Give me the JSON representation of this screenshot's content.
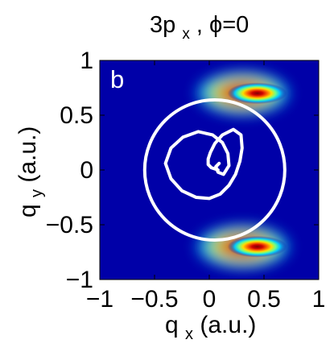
{
  "chart_data": {
    "type": "heatmap",
    "title": {
      "main": "3p",
      "sub": "x",
      "rest": ", ϕ=0"
    },
    "panel_label": "b",
    "xlabel": {
      "main": "q",
      "sub": "x",
      "rest": " (a.u.)"
    },
    "ylabel": {
      "main": "q",
      "sub": "y",
      "rest": " (a.u.)"
    },
    "xlim": [
      -1,
      1
    ],
    "ylim": [
      -1,
      1
    ],
    "x_ticks": [
      {
        "value": -1,
        "label": "−1"
      },
      {
        "value": -0.5,
        "label": "−0.5"
      },
      {
        "value": 0,
        "label": "0"
      },
      {
        "value": 0.5,
        "label": "0.5"
      },
      {
        "value": 1,
        "label": "1"
      }
    ],
    "y_ticks": [
      {
        "value": 1,
        "label": "1"
      },
      {
        "value": 0.5,
        "label": "0.5"
      },
      {
        "value": 0,
        "label": "0"
      },
      {
        "value": -0.5,
        "label": "−0.5"
      },
      {
        "value": -1,
        "label": "−1"
      }
    ],
    "colormap": "jet",
    "background_color": "#0000a8",
    "intensity_lobes": [
      {
        "qx": 0.38,
        "qy": 0.7,
        "radius": 0.34,
        "peak": 1.0
      },
      {
        "qx": 0.38,
        "qy": -0.7,
        "radius": 0.34,
        "peak": 1.0
      }
    ],
    "overlay_curves": [
      {
        "type": "circle",
        "center": [
          0.05,
          0.0
        ],
        "radius": 0.64,
        "color": "#ffffff"
      },
      {
        "type": "loop_curve",
        "color": "#ffffff",
        "points": [
          [
            0.08,
            0.0
          ],
          [
            0.02,
            0.02
          ],
          [
            -0.01,
            0.05
          ],
          [
            -0.01,
            0.1
          ],
          [
            0.01,
            0.16
          ],
          [
            0.05,
            0.24
          ],
          [
            0.12,
            0.32
          ],
          [
            0.22,
            0.37
          ],
          [
            0.29,
            0.32
          ],
          [
            0.3,
            0.2
          ],
          [
            0.28,
            0.08
          ],
          [
            0.24,
            -0.04
          ],
          [
            0.18,
            -0.14
          ],
          [
            0.1,
            -0.22
          ],
          [
            0.0,
            -0.26
          ],
          [
            -0.12,
            -0.25
          ],
          [
            -0.25,
            -0.19
          ],
          [
            -0.35,
            -0.08
          ],
          [
            -0.4,
            0.06
          ],
          [
            -0.35,
            0.2
          ],
          [
            -0.24,
            0.3
          ],
          [
            -0.1,
            0.35
          ],
          [
            0.03,
            0.32
          ],
          [
            0.12,
            0.25
          ],
          [
            0.17,
            0.15
          ],
          [
            0.18,
            0.04
          ],
          [
            0.13,
            -0.04
          ],
          [
            0.08,
            -0.02
          ],
          [
            0.06,
            0.03
          ],
          [
            0.09,
            0.06
          ]
        ]
      }
    ]
  }
}
